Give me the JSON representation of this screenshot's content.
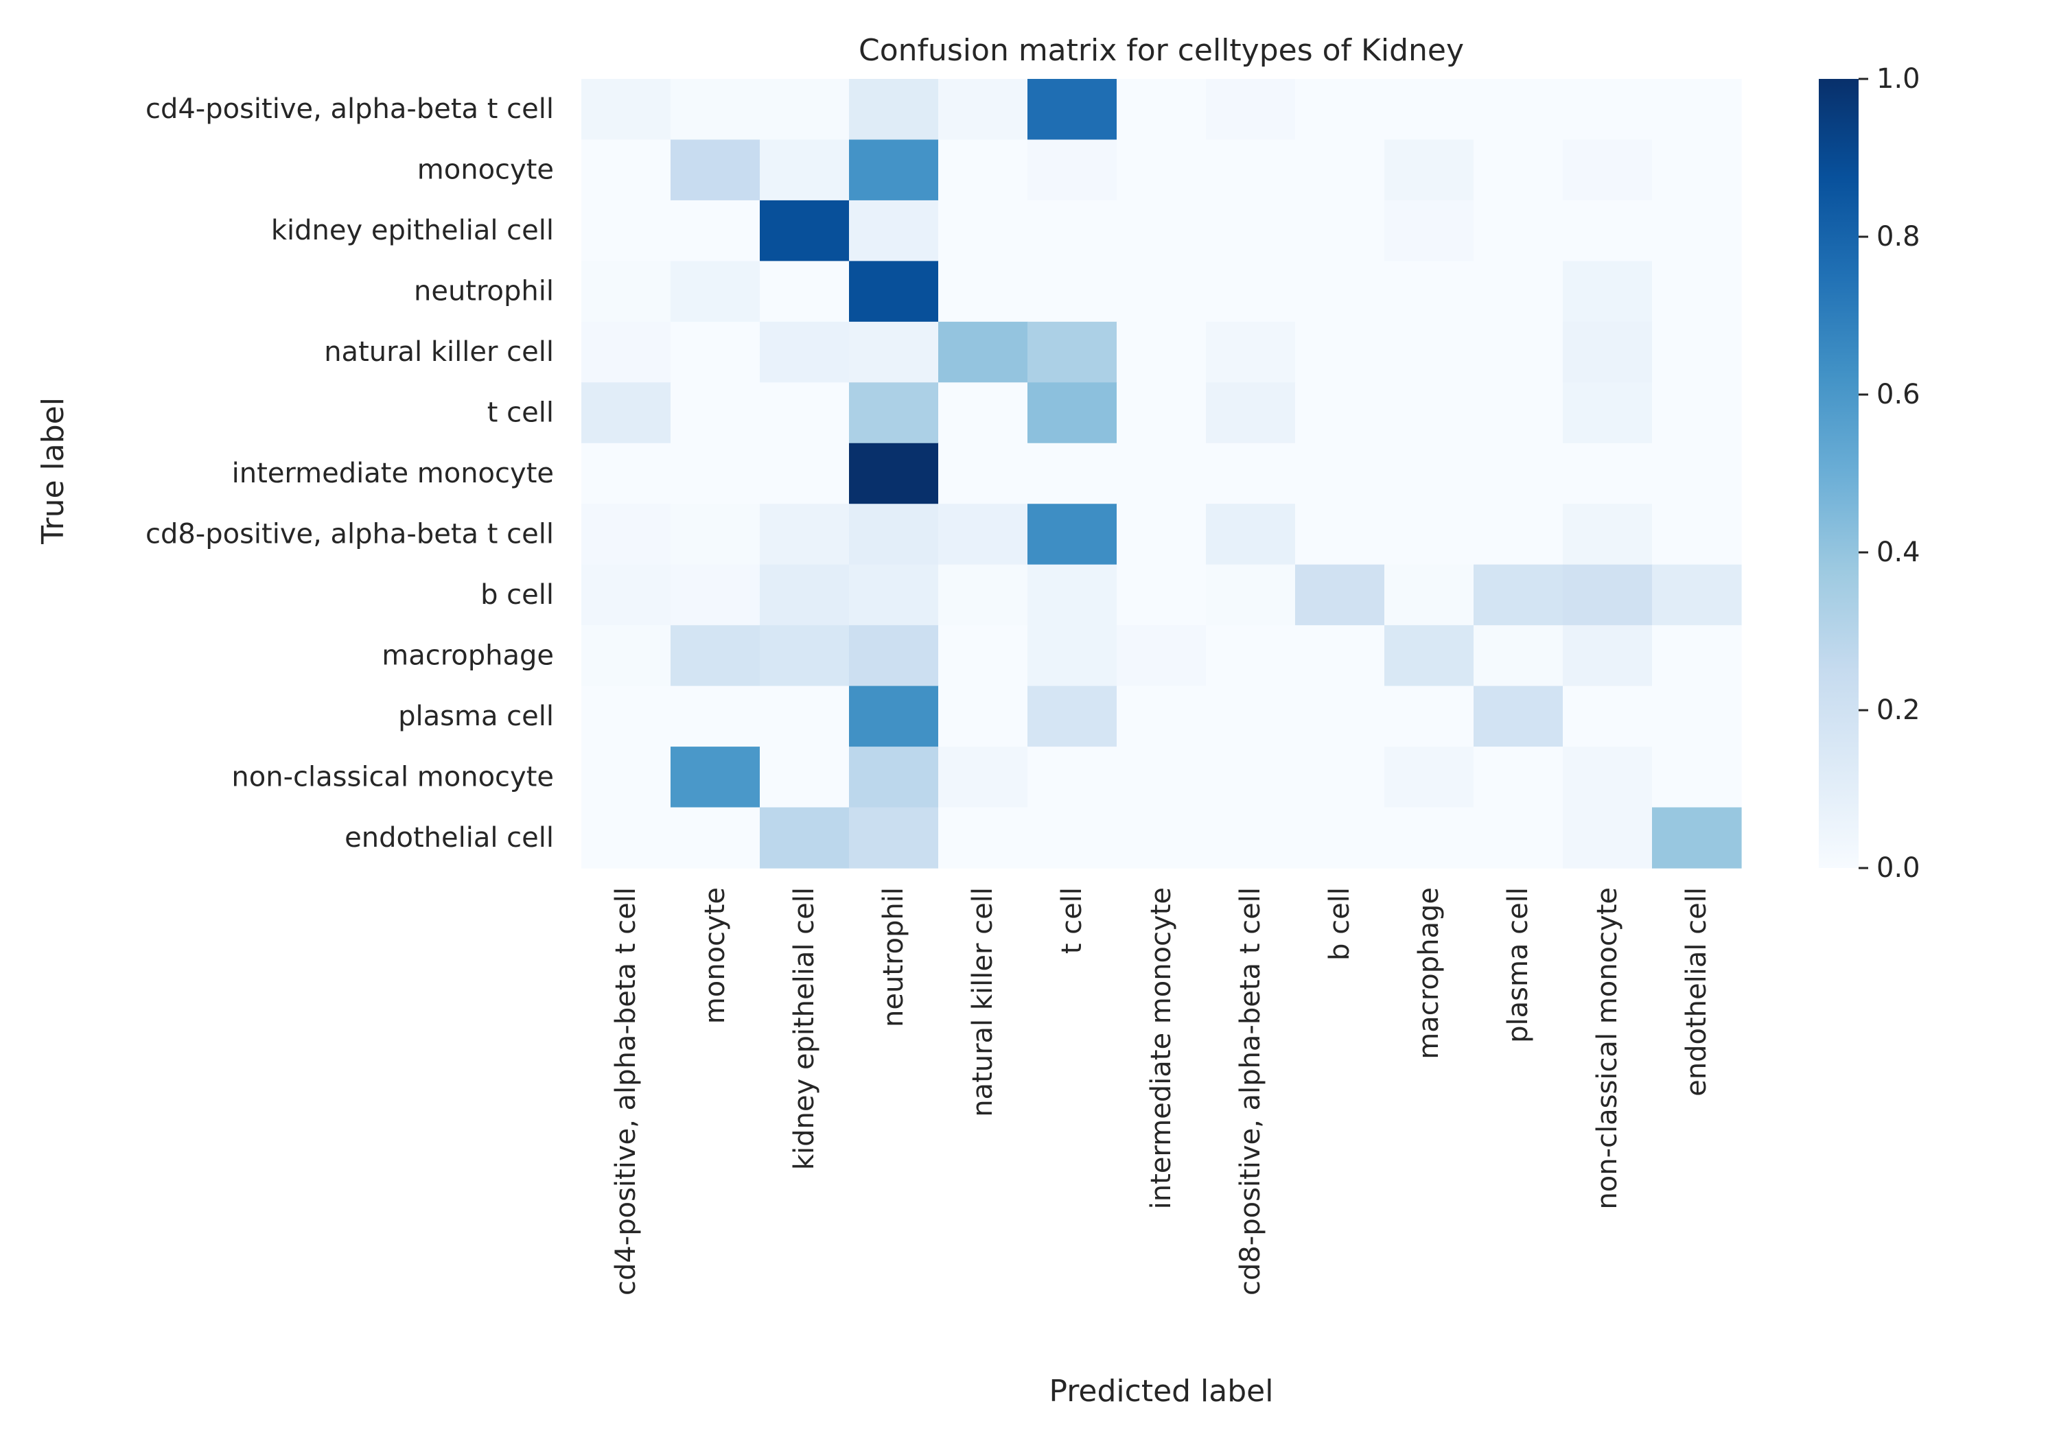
{
  "chart_data": {
    "type": "heatmap",
    "title": "Confusion matrix for celltypes of Kidney",
    "xlabel": "Predicted label",
    "ylabel": "True label",
    "colormap": "Blues",
    "colorbar": {
      "min": 0.0,
      "max": 1.0,
      "ticks": [
        "0.0",
        "0.2",
        "0.4",
        "0.6",
        "0.8",
        "1.0"
      ]
    },
    "row_labels": [
      "cd4-positive, alpha-beta t cell",
      "monocyte",
      "kidney epithelial cell",
      "neutrophil",
      "natural killer cell",
      "t cell",
      "intermediate monocyte",
      "cd8-positive, alpha-beta t cell",
      "b cell",
      "macrophage",
      "plasma cell",
      "non-classical monocyte",
      "endothelial cell"
    ],
    "col_labels": [
      "cd4-positive, alpha-beta t cell",
      "monocyte",
      "kidney epithelial cell",
      "neutrophil",
      "natural killer cell",
      "t cell",
      "intermediate monocyte",
      "cd8-positive, alpha-beta t cell",
      "b cell",
      "macrophage",
      "plasma cell",
      "non-classical monocyte",
      "endothelial cell"
    ],
    "matrix": [
      [
        0.04,
        0.01,
        0.01,
        0.12,
        0.03,
        0.76,
        0.0,
        0.02,
        0.0,
        0.0,
        0.0,
        0.0,
        0.0
      ],
      [
        0.0,
        0.24,
        0.05,
        0.62,
        0.0,
        0.02,
        0.0,
        0.0,
        0.0,
        0.04,
        0.0,
        0.02,
        0.0
      ],
      [
        0.0,
        0.0,
        0.88,
        0.07,
        0.0,
        0.0,
        0.0,
        0.0,
        0.0,
        0.02,
        0.0,
        0.0,
        0.0
      ],
      [
        0.01,
        0.05,
        0.0,
        0.88,
        0.0,
        0.0,
        0.0,
        0.0,
        0.0,
        0.0,
        0.0,
        0.05,
        0.0
      ],
      [
        0.02,
        0.0,
        0.07,
        0.06,
        0.4,
        0.33,
        0.0,
        0.03,
        0.0,
        0.0,
        0.0,
        0.06,
        0.0
      ],
      [
        0.11,
        0.0,
        0.0,
        0.33,
        0.0,
        0.42,
        0.0,
        0.06,
        0.0,
        0.0,
        0.0,
        0.05,
        0.0
      ],
      [
        0.0,
        0.0,
        0.0,
        1.0,
        0.0,
        0.0,
        0.0,
        0.0,
        0.0,
        0.0,
        0.0,
        0.0,
        0.0
      ],
      [
        0.02,
        0.01,
        0.06,
        0.1,
        0.07,
        0.64,
        0.0,
        0.08,
        0.0,
        0.0,
        0.0,
        0.04,
        0.0
      ],
      [
        0.03,
        0.02,
        0.1,
        0.08,
        0.01,
        0.05,
        0.0,
        0.01,
        0.2,
        0.01,
        0.18,
        0.2,
        0.11
      ],
      [
        0.01,
        0.18,
        0.16,
        0.22,
        0.0,
        0.05,
        0.02,
        0.0,
        0.0,
        0.15,
        0.01,
        0.06,
        0.0
      ],
      [
        0.0,
        0.0,
        0.0,
        0.63,
        0.0,
        0.17,
        0.0,
        0.0,
        0.0,
        0.0,
        0.19,
        0.0,
        0.0
      ],
      [
        0.0,
        0.6,
        0.0,
        0.28,
        0.03,
        0.0,
        0.0,
        0.0,
        0.0,
        0.03,
        0.0,
        0.03,
        0.0
      ],
      [
        0.0,
        0.0,
        0.28,
        0.23,
        0.0,
        0.0,
        0.0,
        0.0,
        0.0,
        0.0,
        0.0,
        0.03,
        0.39
      ]
    ]
  }
}
